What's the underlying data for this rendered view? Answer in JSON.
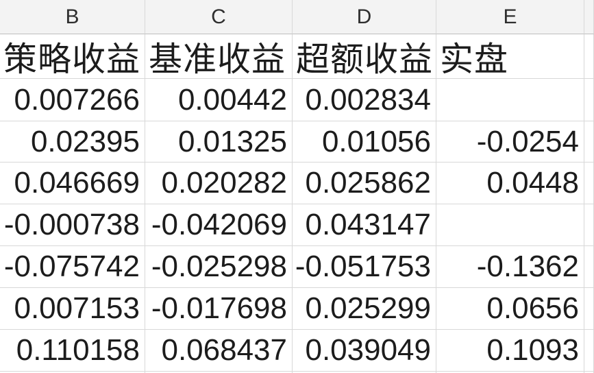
{
  "columns": [
    "B",
    "C",
    "D",
    "E"
  ],
  "header_row": [
    "策略收益",
    "基准收益",
    "超额收益",
    "实盘"
  ],
  "rows": [
    [
      "0.007266",
      "0.00442",
      "0.002834",
      ""
    ],
    [
      "0.02395",
      "0.01325",
      "0.01056",
      "-0.0254"
    ],
    [
      "0.046669",
      "0.020282",
      "0.025862",
      "0.0448"
    ],
    [
      "-0.000738",
      "-0.042069",
      "0.043147",
      ""
    ],
    [
      "-0.075742",
      "-0.025298",
      "-0.051753",
      "-0.1362"
    ],
    [
      "0.007153",
      "-0.017698",
      "0.025299",
      "0.0656"
    ],
    [
      "0.110158",
      "0.068437",
      "0.039049",
      "0.1093"
    ]
  ],
  "colors": {
    "header_bg": "#f3f3f3",
    "header_border": "#bdbdbd",
    "gridline": "#d8d8d8",
    "text": "#1c1c1c"
  }
}
